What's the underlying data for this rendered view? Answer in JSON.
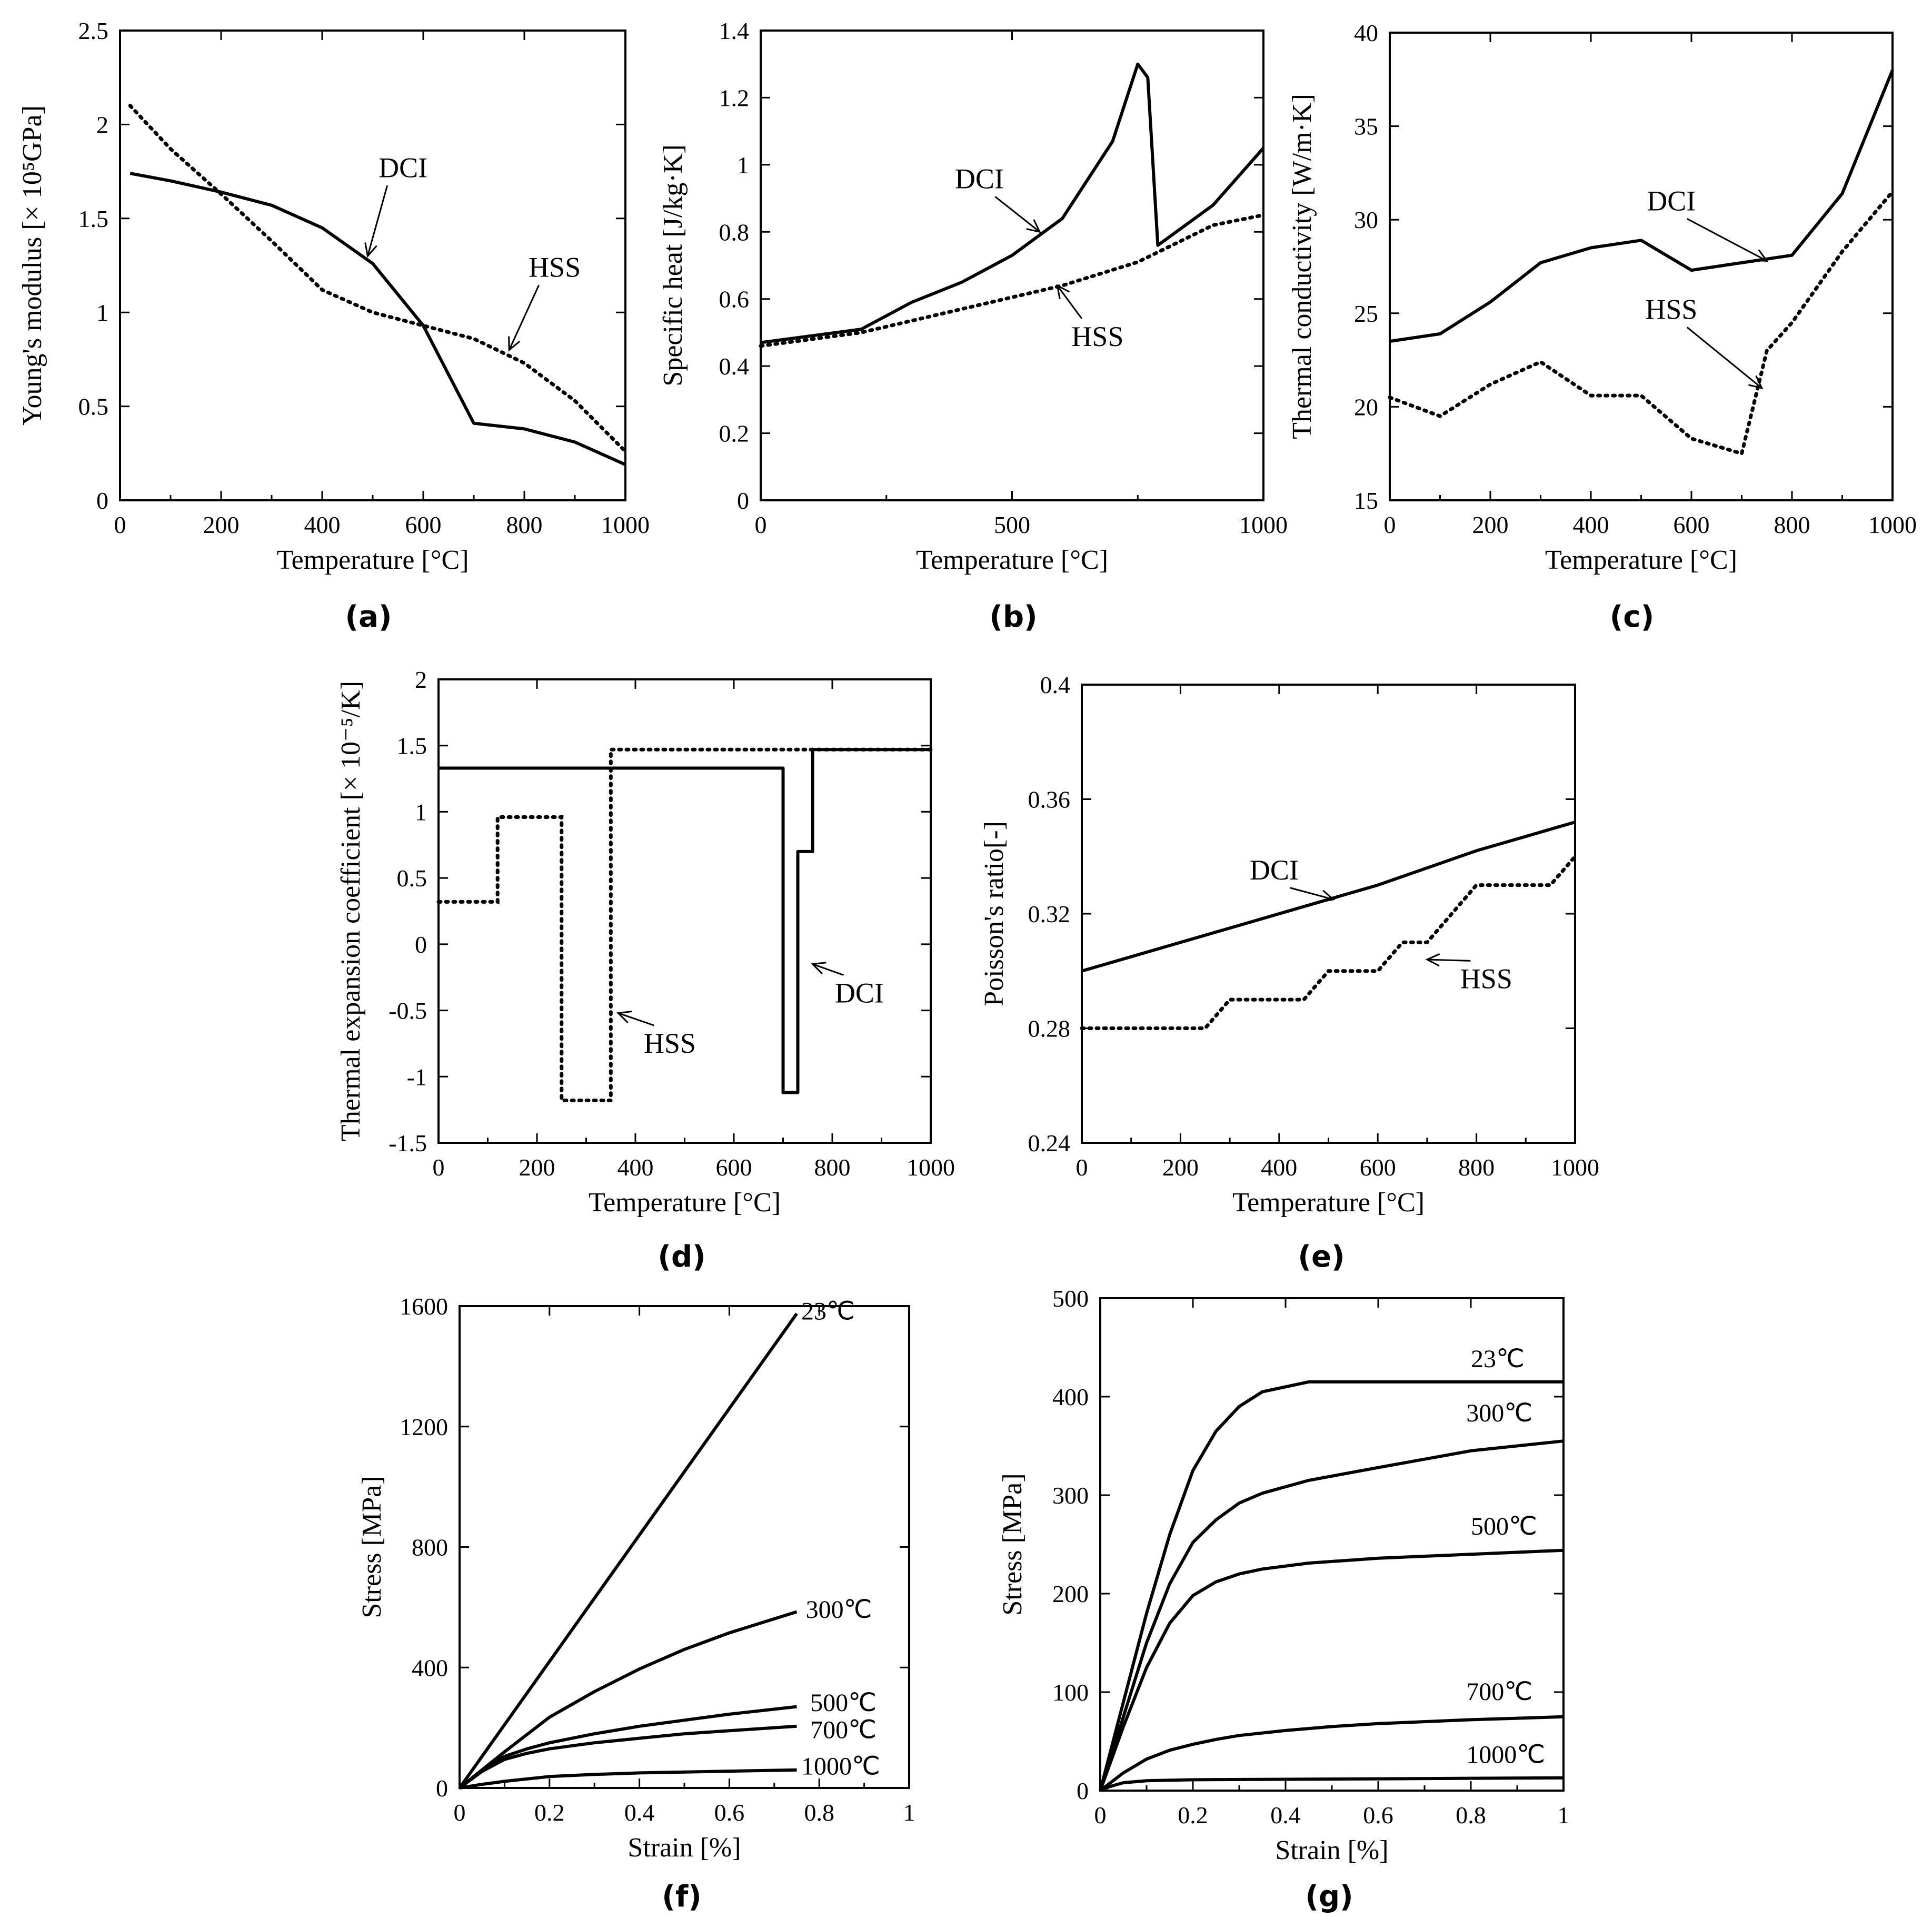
{
  "chart_data": [
    {
      "id": "a",
      "type": "line",
      "panel_label": "(a)",
      "xlabel": "Temperature [°C]",
      "ylabel": "Young's modulus [× 10⁵GPa]",
      "xlim": [
        0,
        1000
      ],
      "ylim": [
        0,
        2.5
      ],
      "xticks": [
        0,
        200,
        400,
        600,
        800,
        1000
      ],
      "xtick_labels": [
        "0",
        "200",
        "400",
        "600",
        "800",
        "1000"
      ],
      "yticks": [
        0,
        0.5,
        1,
        1.5,
        2,
        2.5
      ],
      "ytick_labels": [
        "0",
        "0.5",
        "1",
        "1.5",
        "2",
        "2.5"
      ],
      "grid": false,
      "series": [
        {
          "name": "DCI",
          "style": "solid",
          "x": [
            20,
            100,
            200,
            300,
            400,
            500,
            600,
            700,
            800,
            900,
            1000
          ],
          "y": [
            1.74,
            1.7,
            1.64,
            1.57,
            1.45,
            1.26,
            0.93,
            0.41,
            0.38,
            0.31,
            0.19
          ]
        },
        {
          "name": "HSS",
          "style": "dotted",
          "x": [
            20,
            100,
            200,
            300,
            400,
            500,
            600,
            700,
            800,
            900,
            1000
          ],
          "y": [
            2.1,
            1.87,
            1.63,
            1.38,
            1.12,
            1.0,
            0.93,
            0.86,
            0.73,
            0.53,
            0.26
          ]
        }
      ],
      "annotations": [
        {
          "text": "DCI",
          "x": 560,
          "y": 1.72,
          "arrow_to": [
            490,
            1.3
          ]
        },
        {
          "text": "HSS",
          "x": 860,
          "y": 1.19,
          "arrow_to": [
            770,
            0.8
          ]
        }
      ]
    },
    {
      "id": "b",
      "type": "line",
      "panel_label": "(b)",
      "xlabel": "Temperature [°C]",
      "ylabel": "Specific heat [J/kg·K]",
      "xlim": [
        0,
        1000
      ],
      "ylim": [
        0,
        1.4
      ],
      "xticks": [
        0,
        500,
        1000
      ],
      "xtick_labels": [
        "0",
        "500",
        "1000"
      ],
      "yticks": [
        0,
        0.2,
        0.4,
        0.6,
        0.8,
        1.0,
        1.2,
        1.4
      ],
      "ytick_labels": [
        "0",
        "0.2",
        "0.4",
        "0.6",
        "0.8",
        "1",
        "1.2",
        "1.4"
      ],
      "grid": false,
      "series": [
        {
          "name": "DCI",
          "style": "solid",
          "x": [
            0,
            200,
            300,
            400,
            500,
            600,
            700,
            750,
            770,
            790,
            900,
            1000
          ],
          "y": [
            0.47,
            0.51,
            0.59,
            0.65,
            0.73,
            0.84,
            1.07,
            1.3,
            1.26,
            0.76,
            0.88,
            1.05
          ]
        },
        {
          "name": "HSS",
          "style": "dotted",
          "x": [
            0,
            200,
            400,
            600,
            750,
            900,
            1000
          ],
          "y": [
            0.46,
            0.5,
            0.57,
            0.64,
            0.71,
            0.82,
            0.85
          ]
        }
      ],
      "annotations": [
        {
          "text": "DCI",
          "x": 435,
          "y": 0.93,
          "arrow_to": [
            555,
            0.8
          ]
        },
        {
          "text": "HSS",
          "x": 670,
          "y": 0.46,
          "arrow_to": [
            590,
            0.64
          ]
        }
      ]
    },
    {
      "id": "c",
      "type": "line",
      "panel_label": "(c)",
      "xlabel": "Temperature [°C]",
      "ylabel": "Thermal conductivity [W/m·K]",
      "xlim": [
        0,
        1000
      ],
      "ylim": [
        15,
        40
      ],
      "xticks": [
        0,
        200,
        400,
        600,
        800,
        1000
      ],
      "xtick_labels": [
        "0",
        "200",
        "400",
        "600",
        "800",
        "1000"
      ],
      "yticks": [
        15,
        20,
        25,
        30,
        35,
        40
      ],
      "ytick_labels": [
        "15",
        "20",
        "25",
        "30",
        "35",
        "40"
      ],
      "grid": false,
      "series": [
        {
          "name": "DCI",
          "style": "solid",
          "x": [
            0,
            100,
            200,
            300,
            400,
            500,
            600,
            700,
            800,
            900,
            1000
          ],
          "y": [
            23.5,
            23.9,
            25.6,
            27.7,
            28.5,
            28.9,
            27.3,
            27.7,
            28.1,
            31.4,
            38.0
          ]
        },
        {
          "name": "HSS",
          "style": "dotted",
          "x": [
            0,
            100,
            200,
            300,
            400,
            500,
            600,
            700,
            750,
            800,
            900,
            1000
          ],
          "y": [
            20.5,
            19.5,
            21.2,
            22.4,
            20.6,
            20.6,
            18.3,
            17.5,
            23.0,
            24.5,
            28.3,
            31.5
          ]
        }
      ],
      "annotations": [
        {
          "text": "DCI",
          "x": 560,
          "y": 30.5,
          "arrow_to": [
            750,
            27.8
          ]
        },
        {
          "text": "HSS",
          "x": 560,
          "y": 24.7,
          "arrow_to": [
            740,
            21.0
          ]
        }
      ]
    },
    {
      "id": "d",
      "type": "line",
      "panel_label": "(d)",
      "xlabel": "Temperature [°C]",
      "ylabel": "Thermal expansion coefficient [× 10⁻⁵/K]",
      "xlim": [
        0,
        1000
      ],
      "ylim": [
        -1.5,
        2.0
      ],
      "xticks": [
        0,
        200,
        400,
        600,
        800,
        1000
      ],
      "xtick_labels": [
        "0",
        "200",
        "400",
        "600",
        "800",
        "1000"
      ],
      "yticks": [
        -1.5,
        -1.0,
        -0.5,
        0,
        0.5,
        1.0,
        1.5,
        2.0
      ],
      "ytick_labels": [
        "-1.5",
        "-1",
        "-0.5",
        "0",
        "0.5",
        "1",
        "1.5",
        "2"
      ],
      "grid": false,
      "series": [
        {
          "name": "DCI",
          "style": "solid",
          "x": [
            0,
            700,
            700,
            730,
            730,
            760,
            760,
            1000
          ],
          "y": [
            1.33,
            1.33,
            -1.12,
            -1.12,
            0.7,
            0.7,
            1.47,
            1.47
          ]
        },
        {
          "name": "HSS",
          "style": "dotted",
          "x": [
            0,
            120,
            120,
            250,
            250,
            350,
            350,
            1000
          ],
          "y": [
            0.32,
            0.32,
            0.96,
            0.96,
            -1.18,
            -1.18,
            1.47,
            1.47
          ]
        }
      ],
      "annotations": [
        {
          "text": "DCI",
          "x": 855,
          "y": -0.44,
          "arrow_to": [
            760,
            -0.15
          ]
        },
        {
          "text": "HSS",
          "x": 470,
          "y": -0.82,
          "arrow_to": [
            365,
            -0.52
          ]
        }
      ]
    },
    {
      "id": "e",
      "type": "line",
      "panel_label": "(e)",
      "xlabel": "Temperature [°C]",
      "ylabel": "Poisson's ratio[-]",
      "xlim": [
        0,
        1000
      ],
      "ylim": [
        0.24,
        0.4
      ],
      "xticks": [
        0,
        200,
        400,
        600,
        800,
        1000
      ],
      "xtick_labels": [
        "0",
        "200",
        "400",
        "600",
        "800",
        "1000"
      ],
      "yticks": [
        0.24,
        0.28,
        0.32,
        0.36,
        0.4
      ],
      "ytick_labels": [
        "0.24",
        "0.28",
        "0.32",
        "0.36",
        "0.4"
      ],
      "grid": false,
      "series": [
        {
          "name": "DCI",
          "style": "solid",
          "x": [
            0,
            200,
            400,
            600,
            800,
            1000
          ],
          "y": [
            0.3,
            0.31,
            0.32,
            0.33,
            0.342,
            0.352
          ]
        },
        {
          "name": "HSS",
          "style": "dotted",
          "x": [
            0,
            250,
            300,
            450,
            500,
            600,
            650,
            700,
            750,
            800,
            950,
            1000
          ],
          "y": [
            0.28,
            0.28,
            0.29,
            0.29,
            0.3,
            0.3,
            0.31,
            0.31,
            0.32,
            0.33,
            0.33,
            0.34
          ]
        }
      ],
      "annotations": [
        {
          "text": "DCI",
          "x": 390,
          "y": 0.332,
          "arrow_to": [
            510,
            0.325
          ]
        },
        {
          "text": "HSS",
          "x": 820,
          "y": 0.294,
          "arrow_to": [
            700,
            0.304
          ]
        }
      ]
    },
    {
      "id": "f",
      "type": "line",
      "panel_label": "(f)",
      "xlabel": "Strain [%]",
      "ylabel": "Stress [MPa]",
      "xlim": [
        0,
        1
      ],
      "ylim": [
        0,
        1600
      ],
      "xticks": [
        0,
        0.2,
        0.4,
        0.6,
        0.8,
        1
      ],
      "xtick_labels": [
        "0",
        "0.2",
        "0.4",
        "0.6",
        "0.8",
        "1"
      ],
      "yticks": [
        0,
        400,
        800,
        1200,
        1600
      ],
      "ytick_labels": [
        "0",
        "400",
        "800",
        "1200",
        "1600"
      ],
      "grid": false,
      "series": [
        {
          "name": "23℃",
          "style": "solid",
          "x": [
            0,
            0.75
          ],
          "y": [
            0,
            1575
          ]
        },
        {
          "name": "300℃",
          "style": "solid",
          "x": [
            0,
            0.1,
            0.2,
            0.3,
            0.4,
            0.5,
            0.6,
            0.75
          ],
          "y": [
            0,
            120,
            235,
            320,
            395,
            460,
            515,
            585
          ]
        },
        {
          "name": "500℃",
          "style": "solid",
          "x": [
            0,
            0.05,
            0.1,
            0.15,
            0.2,
            0.3,
            0.4,
            0.5,
            0.6,
            0.75
          ],
          "y": [
            0,
            60,
            105,
            130,
            150,
            180,
            205,
            225,
            245,
            270
          ]
        },
        {
          "name": "700℃",
          "style": "solid",
          "x": [
            0,
            0.05,
            0.1,
            0.15,
            0.2,
            0.3,
            0.4,
            0.5,
            0.6,
            0.75
          ],
          "y": [
            0,
            55,
            95,
            115,
            130,
            150,
            165,
            180,
            190,
            205
          ]
        },
        {
          "name": "1000℃",
          "style": "solid",
          "x": [
            0,
            0.05,
            0.1,
            0.2,
            0.3,
            0.4,
            0.5,
            0.75
          ],
          "y": [
            0,
            12,
            22,
            38,
            45,
            50,
            53,
            60
          ]
        }
      ],
      "curve_labels": [
        {
          "text": "23℃",
          "x": 0.76,
          "y": 1555
        },
        {
          "text": "300℃",
          "x": 0.77,
          "y": 565
        },
        {
          "text": "500℃",
          "x": 0.78,
          "y": 255
        },
        {
          "text": "700℃",
          "x": 0.78,
          "y": 165
        },
        {
          "text": "1000℃",
          "x": 0.76,
          "y": 45
        }
      ]
    },
    {
      "id": "g",
      "type": "line",
      "panel_label": "(g)",
      "xlabel": "Strain [%]",
      "ylabel": "Stress [MPa]",
      "xlim": [
        0,
        1
      ],
      "ylim": [
        0,
        500
      ],
      "xticks": [
        0,
        0.2,
        0.4,
        0.6,
        0.8,
        1
      ],
      "xtick_labels": [
        "0",
        "0.2",
        "0.4",
        "0.6",
        "0.8",
        "1"
      ],
      "yticks": [
        0,
        100,
        200,
        300,
        400,
        500
      ],
      "ytick_labels": [
        "0",
        "100",
        "200",
        "300",
        "400",
        "500"
      ],
      "grid": false,
      "series": [
        {
          "name": "23℃",
          "style": "solid",
          "x": [
            0,
            0.05,
            0.1,
            0.15,
            0.2,
            0.25,
            0.3,
            0.35,
            0.45,
            1.0
          ],
          "y": [
            0,
            90,
            180,
            260,
            325,
            365,
            390,
            405,
            415,
            415
          ]
        },
        {
          "name": "300℃",
          "style": "solid",
          "x": [
            0,
            0.05,
            0.1,
            0.15,
            0.2,
            0.25,
            0.3,
            0.35,
            0.45,
            0.6,
            0.8,
            1.0
          ],
          "y": [
            0,
            75,
            150,
            210,
            252,
            275,
            292,
            302,
            315,
            328,
            345,
            355
          ]
        },
        {
          "name": "500℃",
          "style": "solid",
          "x": [
            0,
            0.05,
            0.1,
            0.15,
            0.2,
            0.25,
            0.3,
            0.35,
            0.45,
            0.6,
            0.8,
            1.0
          ],
          "y": [
            0,
            65,
            125,
            170,
            198,
            212,
            220,
            225,
            231,
            236,
            240,
            244
          ]
        },
        {
          "name": "700℃",
          "style": "solid",
          "x": [
            0,
            0.05,
            0.1,
            0.15,
            0.2,
            0.25,
            0.3,
            0.4,
            0.5,
            0.6,
            0.8,
            1.0
          ],
          "y": [
            0,
            18,
            32,
            41,
            47,
            52,
            56,
            61,
            65,
            68,
            72,
            75
          ]
        },
        {
          "name": "1000℃",
          "style": "solid",
          "x": [
            0,
            0.02,
            0.05,
            0.1,
            0.2,
            0.4,
            0.6,
            0.8,
            1.0
          ],
          "y": [
            0,
            4,
            8,
            10,
            11,
            11.5,
            12,
            12.5,
            13
          ]
        }
      ],
      "curve_labels": [
        {
          "text": "23℃",
          "x": 0.8,
          "y": 430
        },
        {
          "text": "300℃",
          "x": 0.79,
          "y": 375
        },
        {
          "text": "500℃",
          "x": 0.8,
          "y": 260
        },
        {
          "text": "700℃",
          "x": 0.79,
          "y": 92
        },
        {
          "text": "1000℃",
          "x": 0.79,
          "y": 28
        }
      ]
    }
  ]
}
